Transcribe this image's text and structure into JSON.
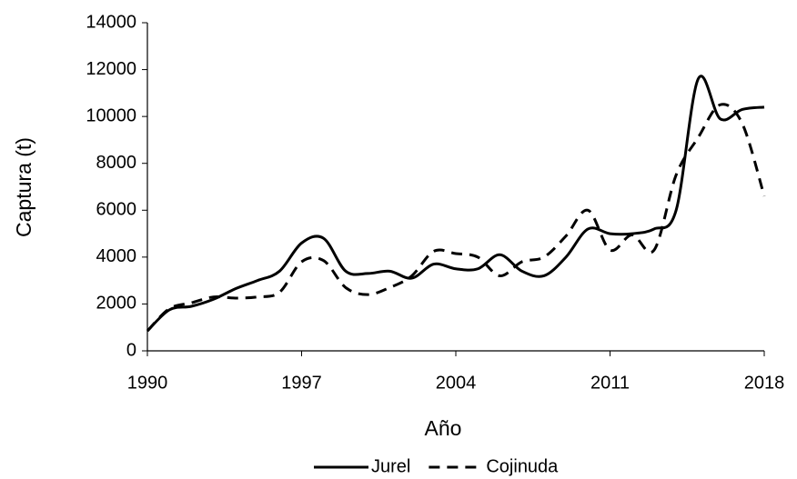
{
  "chart_data": {
    "type": "line",
    "x": [
      1990,
      1991,
      1992,
      1993,
      1994,
      1995,
      1996,
      1997,
      1998,
      1999,
      2000,
      2001,
      2002,
      2003,
      2004,
      2005,
      2006,
      2007,
      2008,
      2009,
      2010,
      2011,
      2012,
      2013,
      2014,
      2015,
      2016,
      2017,
      2018
    ],
    "series": [
      {
        "name": "Jurel",
        "color": "#000000",
        "dash": "solid",
        "values": [
          850,
          1750,
          1900,
          2200,
          2650,
          3000,
          3400,
          4600,
          4800,
          3400,
          3300,
          3400,
          3100,
          3700,
          3500,
          3500,
          4100,
          3400,
          3200,
          4000,
          5200,
          5000,
          5000,
          5200,
          6000,
          11600,
          9900,
          10300,
          10400
        ]
      },
      {
        "name": "Cojinuda",
        "color": "#000000",
        "dash": "dashed",
        "values": [
          850,
          1800,
          2050,
          2300,
          2250,
          2300,
          2500,
          3800,
          3850,
          2700,
          2400,
          2700,
          3200,
          4250,
          4150,
          4000,
          3200,
          3800,
          4000,
          4900,
          6000,
          4300,
          4950,
          4300,
          7500,
          9100,
          10500,
          9700,
          6600
        ]
      }
    ],
    "xlabel": "Año",
    "ylabel": "Captura (t)",
    "xlim": [
      1990,
      2018
    ],
    "xticks": [
      1990,
      1997,
      2004,
      2011,
      2018
    ],
    "ylim": [
      0,
      14000
    ],
    "yticks": [
      0,
      2000,
      4000,
      6000,
      8000,
      10000,
      12000,
      14000
    ],
    "grid": false,
    "legend": "bottom"
  }
}
